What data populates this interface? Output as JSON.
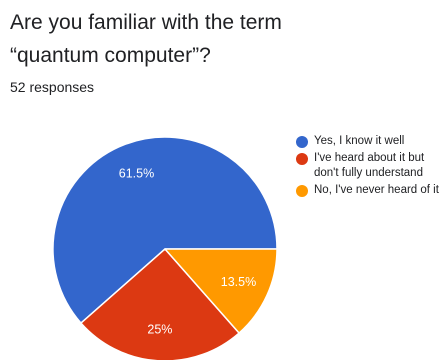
{
  "question": {
    "title": "Are you familiar with the term “quantum computer”?",
    "responses": "52 responses"
  },
  "chart_data": {
    "type": "pie",
    "slices": [
      {
        "label": "Yes, I know it well",
        "value": 61.5,
        "display": "61.5%",
        "color": "#3366cc"
      },
      {
        "label": "I've heard about it but don't fully understand",
        "value": 25,
        "display": "25%",
        "color": "#dc3912"
      },
      {
        "label": "No, I've never heard of it",
        "value": 13.5,
        "display": "13.5%",
        "color": "#ff9900"
      }
    ],
    "legend_position": "right"
  }
}
